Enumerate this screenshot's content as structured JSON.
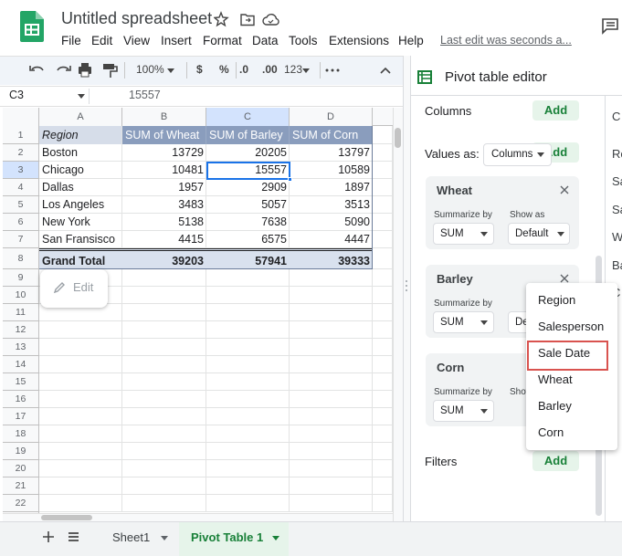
{
  "app": {
    "title": "Untitled spreadsheet",
    "menu": [
      "File",
      "Edit",
      "View",
      "Insert",
      "Format",
      "Data",
      "Tools",
      "Extensions",
      "Help"
    ],
    "last_edit": "Last edit was seconds a..."
  },
  "toolbar": {
    "zoom": "100%",
    "currency": "$",
    "percent": "%",
    "decrease_decimal": ".0",
    "increase_decimal": ".00",
    "format": "123"
  },
  "formula_bar": {
    "cell": "C3",
    "content": "15557"
  },
  "sheet": {
    "columns": [
      "A",
      "B",
      "C",
      "D"
    ],
    "row_numbers": [
      1,
      2,
      3,
      4,
      5,
      6,
      7,
      8,
      9,
      10,
      11,
      12,
      13,
      14,
      15,
      16,
      17,
      18,
      19,
      20,
      21,
      22
    ],
    "header": [
      "Region",
      "SUM of Wheat",
      "SUM of Barley",
      "SUM of Corn"
    ],
    "rows": [
      [
        "Boston",
        13729,
        20205,
        13797
      ],
      [
        "Chicago",
        10481,
        15557,
        10589
      ],
      [
        "Dallas",
        1957,
        2909,
        1897
      ],
      [
        "Los Angeles",
        3483,
        5057,
        3513
      ],
      [
        "New York",
        5138,
        7638,
        5090
      ],
      [
        "San Fransisco",
        4415,
        6575,
        4447
      ]
    ],
    "total": [
      "Grand Total",
      39203,
      57941,
      39333
    ]
  },
  "edit_button": "Edit",
  "editor": {
    "title": "Pivot table editor",
    "columns_label": "Columns",
    "add": "Add",
    "values_as_label": "Values as:",
    "values_as": "Columns",
    "values": [
      {
        "name": "Wheat",
        "summarize_label": "Summarize by",
        "summarize": "SUM",
        "show_label": "Show as",
        "show": "Default"
      },
      {
        "name": "Barley",
        "summarize_label": "Summarize by",
        "summarize": "SUM",
        "show": "Default"
      },
      {
        "name": "Corn",
        "summarize_label": "Summarize by",
        "summarize": "SUM",
        "show_label": "Show as"
      }
    ],
    "filters_label": "Filters"
  },
  "field_menu": {
    "items": [
      "Region",
      "Salesperson",
      "Sale Date",
      "Wheat",
      "Barley",
      "Corn"
    ],
    "highlighted_index": 2
  },
  "clipped_panel": [
    "C",
    "Re",
    "Sa",
    "Sa",
    "W",
    "Ba",
    "C"
  ],
  "tabs": {
    "items": [
      "Sheet1",
      "Pivot Table 1"
    ],
    "active": 1
  }
}
